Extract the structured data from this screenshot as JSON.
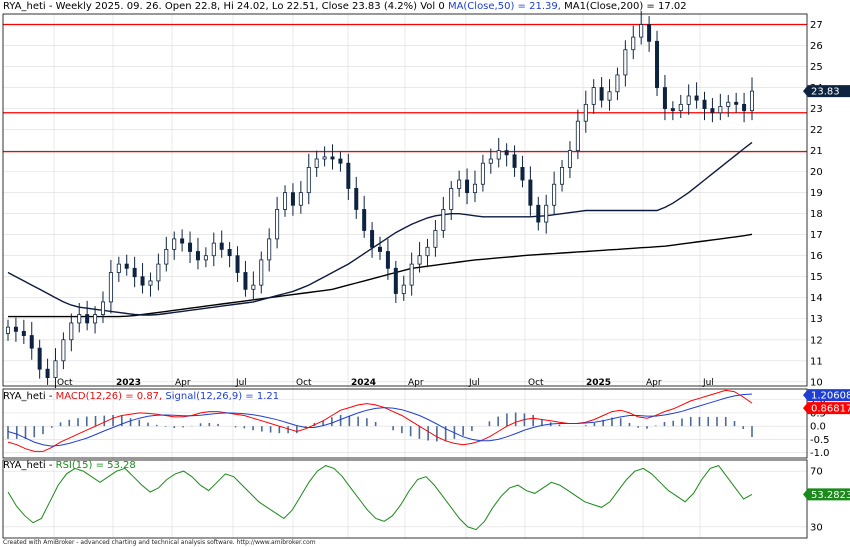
{
  "price_panel": {
    "symbol": "RYA_heti",
    "timeframe": "Weekly",
    "date": "2025. 09. 26.",
    "open": "Open 22.8,",
    "high": "Hi 24.02,",
    "low": "Lo 22.51,",
    "close": "Close 23.83 (4.2%)",
    "volume": "Vol 0",
    "ma50_label": "MA(Close,50) = 21.39,",
    "ma200_label": "MA1(Close,200) = 17.02",
    "last_price_badge": "23.83",
    "y_ticks": [
      "27",
      "26",
      "25",
      "24",
      "23",
      "22",
      "21",
      "20",
      "19",
      "18",
      "17",
      "16",
      "15",
      "14",
      "13",
      "12",
      "11",
      "10"
    ],
    "x_ticks": [
      "Oct",
      "2023",
      "Apr",
      "Jul",
      "Oct",
      "2024",
      "Apr",
      "Jul",
      "Oct",
      "2025",
      "Apr",
      "Jul"
    ]
  },
  "macd_panel": {
    "symbol": "RYA_heti",
    "macd_label": "MACD(12,26) = 0.87,",
    "signal_label": "Signal(12,26,9) = 1.21",
    "badge_signal": "1.20608",
    "badge_macd": "0.868175",
    "y_ticks": [
      "1.0",
      "0.5",
      "0.0",
      "-0.5",
      "-1.0"
    ]
  },
  "rsi_panel": {
    "symbol": "RYA_heti",
    "rsi_label": "RSI(15) = 53.28",
    "badge": "53.2823",
    "y_ticks": [
      "70",
      "30"
    ]
  },
  "footer_text": "Created with AmiBroker - advanced charting and technical analysis software. http://www.amibroker.com",
  "colors": {
    "candle": "#0d2340",
    "ma50": "#0d1a40",
    "ma200": "#000000",
    "hline": "#ff0000",
    "macd": "#ff0000",
    "signal": "#1f3fd1",
    "rsi": "#1a8a1a",
    "grid": "#dcdcdc",
    "badge_price": "#0d2340",
    "badge_signal": "#1f3fd1",
    "badge_macd": "#ff0000",
    "badge_rsi": "#1a8a1a"
  },
  "chart_data": [
    {
      "type": "candlestick",
      "title": "RYA_heti - Weekly",
      "y_axis": "right",
      "ylim": [
        9.8,
        27.5
      ],
      "horizontal_levels": [
        27.0,
        22.8,
        20.95
      ],
      "x_ticks": [
        "Oct",
        "2023",
        "Apr",
        "Jul",
        "Oct",
        "2024",
        "Apr",
        "Jul",
        "Oct",
        "2025",
        "Apr",
        "Jul"
      ],
      "series": [
        {
          "name": "MA(Close,50)",
          "values": [
            15.2,
            15.0,
            14.8,
            14.6,
            14.4,
            14.2,
            14.0,
            13.8,
            13.65,
            13.55,
            13.5,
            13.45,
            13.4,
            13.35,
            13.3,
            13.25,
            13.2,
            13.18,
            13.18,
            13.2,
            13.25,
            13.3,
            13.35,
            13.4,
            13.45,
            13.5,
            13.55,
            13.6,
            13.65,
            13.7,
            13.75,
            13.8,
            13.9,
            14.0,
            14.1,
            14.2,
            14.3,
            14.45,
            14.6,
            14.8,
            15.0,
            15.2,
            15.4,
            15.6,
            15.85,
            16.1,
            16.35,
            16.6,
            16.85,
            17.1,
            17.3,
            17.5,
            17.65,
            17.8,
            17.9,
            17.95,
            18.0,
            18.0,
            17.95,
            17.9,
            17.85,
            17.85,
            17.85,
            17.85,
            17.85,
            17.85,
            17.85,
            17.88,
            17.9,
            17.95,
            18.0,
            18.05,
            18.1,
            18.15,
            18.15,
            18.15,
            18.15,
            18.15,
            18.15,
            18.15,
            18.15,
            18.15,
            18.15,
            18.3,
            18.5,
            18.75,
            19.0,
            19.3,
            19.6,
            19.9,
            20.2,
            20.5,
            20.8,
            21.1,
            21.39
          ]
        },
        {
          "name": "MA1(Close,200)",
          "values": [
            13.1,
            13.1,
            13.1,
            13.1,
            13.1,
            13.1,
            13.1,
            13.1,
            13.1,
            13.1,
            13.1,
            13.1,
            13.1,
            13.1,
            13.1,
            13.12,
            13.15,
            13.2,
            13.25,
            13.3,
            13.35,
            13.4,
            13.45,
            13.5,
            13.55,
            13.6,
            13.65,
            13.7,
            13.75,
            13.8,
            13.85,
            13.9,
            13.95,
            14.0,
            14.05,
            14.1,
            14.15,
            14.2,
            14.25,
            14.3,
            14.35,
            14.4,
            14.5,
            14.6,
            14.7,
            14.8,
            14.9,
            15.0,
            15.1,
            15.2,
            15.3,
            15.4,
            15.45,
            15.5,
            15.55,
            15.6,
            15.65,
            15.7,
            15.75,
            15.8,
            15.83,
            15.86,
            15.9,
            15.93,
            15.96,
            16.0,
            16.03,
            16.05,
            16.08,
            16.1,
            16.13,
            16.15,
            16.18,
            16.2,
            16.23,
            16.25,
            16.28,
            16.3,
            16.33,
            16.35,
            16.38,
            16.4,
            16.43,
            16.45,
            16.5,
            16.55,
            16.6,
            16.65,
            16.7,
            16.75,
            16.8,
            16.85,
            16.9,
            16.95,
            17.02
          ]
        }
      ]
    },
    {
      "type": "line",
      "title": "MACD(12,26)",
      "ylim": [
        -1.2,
        1.4
      ],
      "series": [
        {
          "name": "MACD(12,26)",
          "values": [
            -0.6,
            -0.7,
            -0.85,
            -0.95,
            -0.95,
            -0.8,
            -0.6,
            -0.45,
            -0.3,
            -0.15,
            0.0,
            0.15,
            0.3,
            0.4,
            0.45,
            0.5,
            0.48,
            0.45,
            0.4,
            0.35,
            0.35,
            0.4,
            0.5,
            0.55,
            0.55,
            0.5,
            0.45,
            0.4,
            0.3,
            0.2,
            0.1,
            0.0,
            -0.1,
            -0.2,
            -0.1,
            0.05,
            0.2,
            0.4,
            0.6,
            0.7,
            0.8,
            0.85,
            0.8,
            0.7,
            0.55,
            0.4,
            0.2,
            0.0,
            -0.2,
            -0.4,
            -0.55,
            -0.65,
            -0.7,
            -0.65,
            -0.55,
            -0.4,
            -0.2,
            0.0,
            0.15,
            0.25,
            0.3,
            0.25,
            0.2,
            0.15,
            0.1,
            0.1,
            0.15,
            0.25,
            0.4,
            0.55,
            0.6,
            0.5,
            0.35,
            0.3,
            0.4,
            0.55,
            0.65,
            0.8,
            0.95,
            1.05,
            1.15,
            1.25,
            1.35,
            1.3,
            1.1,
            0.87
          ]
        },
        {
          "name": "Signal(12,26,9)",
          "values": [
            -0.2,
            -0.3,
            -0.45,
            -0.6,
            -0.7,
            -0.75,
            -0.72,
            -0.65,
            -0.55,
            -0.45,
            -0.32,
            -0.18,
            -0.05,
            0.08,
            0.2,
            0.3,
            0.37,
            0.41,
            0.42,
            0.41,
            0.39,
            0.39,
            0.41,
            0.45,
            0.48,
            0.5,
            0.49,
            0.47,
            0.43,
            0.37,
            0.3,
            0.22,
            0.12,
            0.02,
            -0.05,
            -0.05,
            0.02,
            0.12,
            0.25,
            0.38,
            0.5,
            0.6,
            0.67,
            0.7,
            0.68,
            0.62,
            0.52,
            0.4,
            0.25,
            0.08,
            -0.1,
            -0.25,
            -0.4,
            -0.5,
            -0.55,
            -0.55,
            -0.5,
            -0.4,
            -0.28,
            -0.15,
            -0.05,
            0.03,
            0.08,
            0.1,
            0.1,
            0.1,
            0.12,
            0.15,
            0.2,
            0.28,
            0.35,
            0.4,
            0.4,
            0.38,
            0.38,
            0.42,
            0.48,
            0.56,
            0.66,
            0.76,
            0.86,
            0.96,
            1.06,
            1.14,
            1.19,
            1.21
          ]
        }
      ]
    },
    {
      "type": "line",
      "title": "RSI(15)",
      "ylim": [
        22,
        78
      ],
      "series": [
        {
          "name": "RSI(15)",
          "values": [
            55,
            45,
            38,
            33,
            36,
            48,
            60,
            68,
            72,
            70,
            66,
            62,
            66,
            70,
            72,
            66,
            60,
            55,
            58,
            64,
            68,
            70,
            66,
            60,
            56,
            62,
            68,
            66,
            60,
            54,
            48,
            44,
            40,
            36,
            42,
            52,
            62,
            70,
            74,
            72,
            66,
            58,
            50,
            42,
            36,
            34,
            38,
            46,
            56,
            64,
            66,
            60,
            52,
            44,
            36,
            30,
            28,
            34,
            44,
            52,
            58,
            60,
            56,
            54,
            58,
            62,
            60,
            56,
            52,
            48,
            46,
            44,
            48,
            56,
            64,
            70,
            72,
            68,
            62,
            56,
            52,
            48,
            54,
            64,
            72,
            74,
            66,
            58,
            50,
            53.28
          ]
        }
      ]
    }
  ]
}
